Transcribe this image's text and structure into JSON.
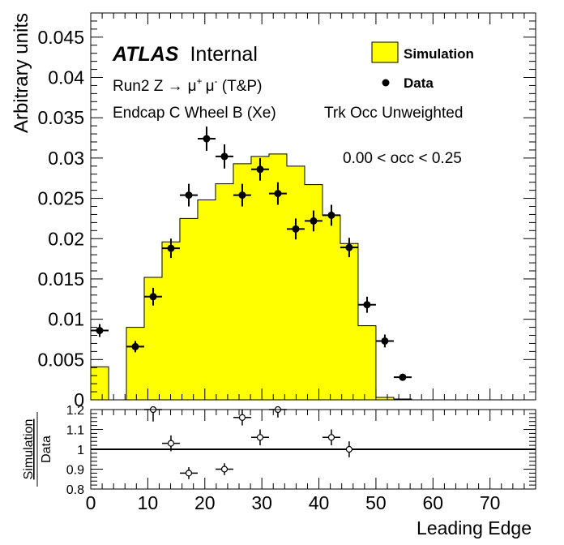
{
  "chart_data": [
    {
      "type": "histogram",
      "ylabel": "Arbitrary units",
      "xlim": [
        0,
        78
      ],
      "ylim": [
        0,
        0.048
      ],
      "yticks": [
        0,
        0.005,
        0.01,
        0.015,
        0.02,
        0.025,
        0.03,
        0.035,
        0.04,
        0.045
      ],
      "ytick_labels": [
        "0",
        "0.005",
        "0.01",
        "0.015",
        "0.02",
        "0.025",
        "0.03",
        "0.035",
        "0.04",
        "0.045"
      ],
      "annotations": {
        "atlas": "ATLAS",
        "internal": "Internal",
        "line1_prefix": "Run2 Z ",
        "arrow": "→",
        "mu": "μ",
        "plus": "+",
        "minus": "-",
        "line1_suffix": " (T&P)",
        "line2": "Endcap C Wheel B (Xe)",
        "line2b": "Trk Occ Unweighted",
        "line3": "0.00 < occ < 0.25"
      },
      "legend": {
        "placement": "top-right",
        "entries": [
          {
            "label": "Simulation",
            "style": "filled-box",
            "color": "#ffff00"
          },
          {
            "label": "Data",
            "style": "marker",
            "color": "#000000"
          }
        ]
      },
      "series": [
        {
          "name": "Simulation",
          "style": "filled-step",
          "color": "#ffff00",
          "bin_edges": [
            0,
            3.125,
            6.25,
            9.375,
            12.5,
            15.625,
            18.75,
            21.875,
            25,
            28.125,
            31.25,
            34.375,
            37.5,
            40.625,
            43.75,
            46.875,
            50,
            53.125,
            56.25
          ],
          "values": [
            0.0041,
            0,
            0.009,
            0.0152,
            0.0196,
            0.0225,
            0.0248,
            0.0268,
            0.0293,
            0.0302,
            0.0305,
            0.029,
            0.0267,
            0.0229,
            0.0194,
            0.0092,
            0.0003,
            0.0001
          ]
        },
        {
          "name": "Data",
          "style": "points",
          "color": "#000000",
          "x": [
            1.56,
            7.81,
            10.94,
            14.06,
            17.19,
            20.31,
            23.44,
            26.56,
            29.69,
            32.81,
            35.94,
            39.06,
            42.19,
            45.31,
            48.44,
            51.56,
            54.69
          ],
          "y": [
            0.0086,
            0.0066,
            0.0128,
            0.0188,
            0.0254,
            0.0324,
            0.0302,
            0.0254,
            0.0286,
            0.0256,
            0.0212,
            0.0222,
            0.0229,
            0.0189,
            0.0118,
            0.0073,
            0.0028
          ],
          "yerr": [
            0.0008,
            0.0007,
            0.0011,
            0.0012,
            0.0014,
            0.0015,
            0.0015,
            0.0014,
            0.0014,
            0.0014,
            0.0013,
            0.0013,
            0.0013,
            0.0012,
            0.001,
            0.0008,
            0.0004
          ],
          "xerr": 1.5625
        }
      ]
    },
    {
      "type": "scatter",
      "xlabel": "Leading Edge",
      "ylabel_numerator": "Simulation",
      "ylabel_denominator": "Data",
      "xlim": [
        0,
        78
      ],
      "ylim": [
        0.8,
        1.2
      ],
      "xticks": [
        0,
        10,
        20,
        30,
        40,
        50,
        60,
        70
      ],
      "xtick_labels": [
        "0",
        "10",
        "20",
        "30",
        "40",
        "50",
        "60",
        "70"
      ],
      "yticks": [
        0.8,
        0.9,
        1,
        1.1,
        1.2
      ],
      "ytick_labels": [
        "0.8",
        "0.9",
        "1",
        "1.1",
        "1.2"
      ],
      "reference_line": 1,
      "series": [
        {
          "name": "Simulation / Data",
          "style": "open-points",
          "x": [
            10.94,
            14.06,
            17.19,
            23.44,
            26.56,
            29.69,
            32.81,
            42.19,
            45.31
          ],
          "y": [
            1.2,
            1.03,
            0.88,
            0.9,
            1.16,
            1.06,
            1.2,
            1.06,
            1.0
          ],
          "yerr": [
            0.06,
            0.04,
            0.03,
            0.03,
            0.04,
            0.04,
            0.04,
            0.04,
            0.04
          ],
          "xerr": 1.5625
        }
      ]
    }
  ]
}
